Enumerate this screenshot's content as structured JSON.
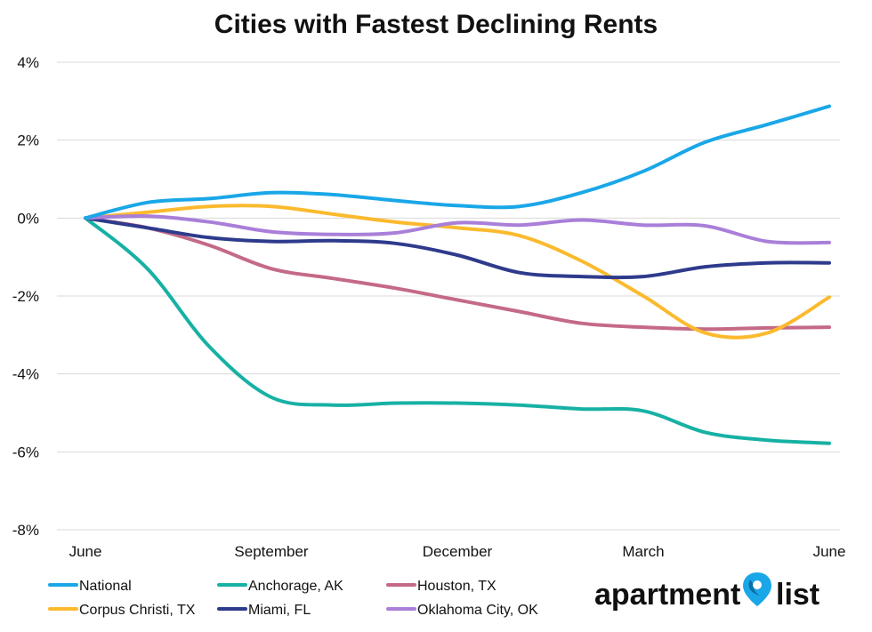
{
  "chart_data": {
    "type": "line",
    "title": "Cities with Fastest Declining Rents",
    "xlabel": "",
    "ylabel": "",
    "x_tick_labels": [
      "June",
      "September",
      "December",
      "March",
      "June"
    ],
    "x_tick_positions": [
      0,
      3,
      6,
      9,
      12
    ],
    "y_ticks": [
      4,
      2,
      0,
      -2,
      -4,
      -6,
      -8
    ],
    "y_tick_labels": [
      "4%",
      "2%",
      "0%",
      "-2%",
      "-4%",
      "-6%",
      "-8%"
    ],
    "ylim": [
      -8,
      4
    ],
    "xlim": [
      0,
      12
    ],
    "grid": "horizontal",
    "legend_position": "bottom",
    "x": [
      0,
      1,
      2,
      3,
      4,
      5,
      6,
      7,
      8,
      9,
      10,
      11,
      12
    ],
    "series": [
      {
        "name": "National",
        "color": "#1aa7e8",
        "values": [
          0,
          0.4,
          0.5,
          0.65,
          0.6,
          0.45,
          0.32,
          0.3,
          0.65,
          1.2,
          1.95,
          2.4,
          2.87
        ]
      },
      {
        "name": "Anchorage, AK",
        "color": "#17b1a4",
        "values": [
          0,
          -1.3,
          -3.3,
          -4.6,
          -4.8,
          -4.75,
          -4.75,
          -4.8,
          -4.9,
          -4.95,
          -5.5,
          -5.7,
          -5.78
        ]
      },
      {
        "name": "Houston, TX",
        "color": "#c46a86",
        "values": [
          0,
          -0.25,
          -0.7,
          -1.3,
          -1.55,
          -1.8,
          -2.1,
          -2.4,
          -2.7,
          -2.8,
          -2.85,
          -2.82,
          -2.8
        ]
      },
      {
        "name": "Corpus Christi, TX",
        "color": "#fbba2e",
        "values": [
          0,
          0.15,
          0.3,
          0.3,
          0.1,
          -0.1,
          -0.25,
          -0.45,
          -1.1,
          -2.0,
          -2.95,
          -2.95,
          -2.03
        ]
      },
      {
        "name": "Miami, FL",
        "color": "#2e3b8c",
        "values": [
          0,
          -0.25,
          -0.5,
          -0.6,
          -0.58,
          -0.65,
          -0.95,
          -1.4,
          -1.5,
          -1.5,
          -1.25,
          -1.15,
          -1.15
        ]
      },
      {
        "name": "Oklahoma City, OK",
        "color": "#a97fd9",
        "values": [
          0,
          0.05,
          -0.1,
          -0.35,
          -0.42,
          -0.38,
          -0.12,
          -0.18,
          -0.05,
          -0.18,
          -0.2,
          -0.6,
          -0.63
        ]
      }
    ]
  },
  "logo": {
    "word1": "apartment",
    "word2": "list",
    "pin_color": "#1aa7e8"
  }
}
